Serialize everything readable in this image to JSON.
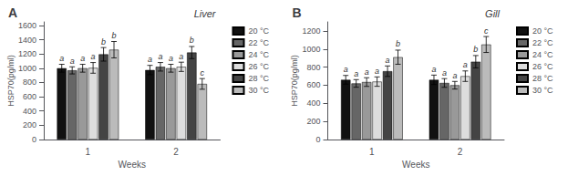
{
  "chart_data": [
    {
      "type": "bar",
      "title": "Liver",
      "annotations": [
        "A"
      ],
      "xlabel": "Weeks",
      "ylabel": "HSP70(pg/ml)",
      "categories": [
        "1",
        "2"
      ],
      "ylim": [
        0,
        1650
      ],
      "yticks": [
        0,
        200,
        400,
        600,
        800,
        1000,
        1200,
        1400,
        1600
      ],
      "grid": false,
      "legend": "upper right",
      "series": [
        {
          "name": "20 °C",
          "color": "#111111",
          "values": [
            1000,
            975
          ],
          "errors": [
            55,
            65
          ],
          "value_labels": [
            "a",
            "a"
          ]
        },
        {
          "name": "22 °C",
          "color": "#666666",
          "values": [
            970,
            1020
          ],
          "errors": [
            50,
            60
          ],
          "value_labels": [
            "a",
            "a"
          ]
        },
        {
          "name": "24 °C",
          "color": "#999999",
          "values": [
            1000,
            1000
          ],
          "errors": [
            55,
            55
          ],
          "value_labels": [
            "a",
            "a"
          ]
        },
        {
          "name": "26 °C",
          "color": "#dddddd",
          "values": [
            1005,
            1020
          ],
          "errors": [
            75,
            65
          ],
          "value_labels": [
            "a",
            "a"
          ]
        },
        {
          "name": "28 °C",
          "color": "#444444",
          "values": [
            1195,
            1220
          ],
          "errors": [
            95,
            85
          ],
          "value_labels": [
            "b",
            "b"
          ]
        },
        {
          "name": "30 °C",
          "color": "#bbbbbb",
          "values": [
            1260,
            780
          ],
          "errors": [
            115,
            75
          ],
          "value_labels": [
            "b",
            "c"
          ]
        }
      ]
    },
    {
      "type": "bar",
      "title": "Gill",
      "annotations": [
        "B"
      ],
      "xlabel": "Weeks",
      "ylabel": "HSP70(pg/ml)",
      "categories": [
        "1",
        "2"
      ],
      "ylim": [
        0,
        1300
      ],
      "yticks": [
        0,
        200,
        400,
        600,
        800,
        1000,
        1200
      ],
      "grid": false,
      "legend": "upper right",
      "series": [
        {
          "name": "20 °C",
          "color": "#111111",
          "values": [
            660,
            660
          ],
          "errors": [
            48,
            52
          ],
          "value_labels": [
            "a",
            "a"
          ]
        },
        {
          "name": "22 °C",
          "color": "#666666",
          "values": [
            620,
            625
          ],
          "errors": [
            42,
            48
          ],
          "value_labels": [
            "a",
            "a"
          ]
        },
        {
          "name": "24 °C",
          "color": "#999999",
          "values": [
            635,
            600
          ],
          "errors": [
            48,
            42
          ],
          "value_labels": [
            "a",
            "a"
          ]
        },
        {
          "name": "26 °C",
          "color": "#dddddd",
          "values": [
            640,
            700
          ],
          "errors": [
            52,
            58
          ],
          "value_labels": [
            "a",
            "a"
          ]
        },
        {
          "name": "28 °C",
          "color": "#444444",
          "values": [
            755,
            860
          ],
          "errors": [
            58,
            68
          ],
          "value_labels": [
            "a",
            "b"
          ]
        },
        {
          "name": "30 °C",
          "color": "#bbbbbb",
          "values": [
            910,
            1050
          ],
          "errors": [
            78,
            88
          ],
          "value_labels": [
            "b",
            "c"
          ]
        }
      ]
    }
  ]
}
